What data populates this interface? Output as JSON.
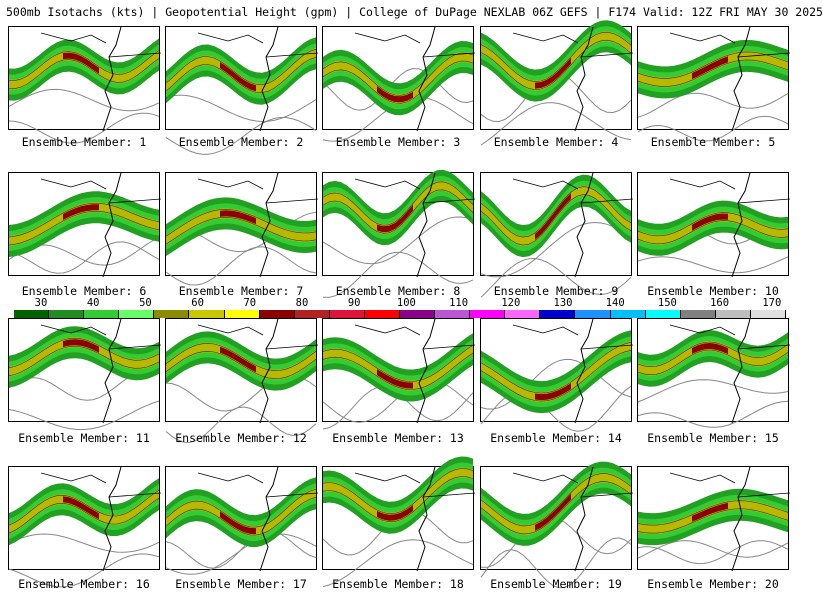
{
  "title": "500mb Isotachs (kts) | Geopotential Height (gpm) | College of DuPage NEXLAB   06Z GEFS | F174 Valid: 12Z FRI MAY 30 2025",
  "panels": [
    {
      "label": "Ensemble Member: 1"
    },
    {
      "label": "Ensemble Member: 2"
    },
    {
      "label": "Ensemble Member: 3"
    },
    {
      "label": "Ensemble Member: 4"
    },
    {
      "label": "Ensemble Member: 5"
    },
    {
      "label": "Ensemble Member: 6"
    },
    {
      "label": "Ensemble Member: 7"
    },
    {
      "label": "Ensemble Member: 8"
    },
    {
      "label": "Ensemble Member: 9"
    },
    {
      "label": "Ensemble Member: 10"
    },
    {
      "label": "Ensemble Member: 11"
    },
    {
      "label": "Ensemble Member: 12"
    },
    {
      "label": "Ensemble Member: 13"
    },
    {
      "label": "Ensemble Member: 14"
    },
    {
      "label": "Ensemble Member: 15"
    },
    {
      "label": "Ensemble Member: 16"
    },
    {
      "label": "Ensemble Member: 17"
    },
    {
      "label": "Ensemble Member: 18"
    },
    {
      "label": "Ensemble Member: 19"
    },
    {
      "label": "Ensemble Member: 20"
    }
  ],
  "colorbar": {
    "ticks": [
      "30",
      "40",
      "50",
      "60",
      "70",
      "80",
      "90",
      "100",
      "110",
      "120",
      "130",
      "140",
      "150",
      "160",
      "170"
    ],
    "colors": [
      "#006400",
      "#228B22",
      "#32CD32",
      "#66FF66",
      "#8B8B00",
      "#C8C800",
      "#FFFF00",
      "#8B0000",
      "#B22222",
      "#DC143C",
      "#FF0000",
      "#8B008B",
      "#BA55D3",
      "#FF00FF",
      "#FF66FF",
      "#0000CD",
      "#1E90FF",
      "#00BFFF",
      "#00FFFF",
      "#808080",
      "#BEBEBE",
      "#E0E0E0"
    ]
  }
}
